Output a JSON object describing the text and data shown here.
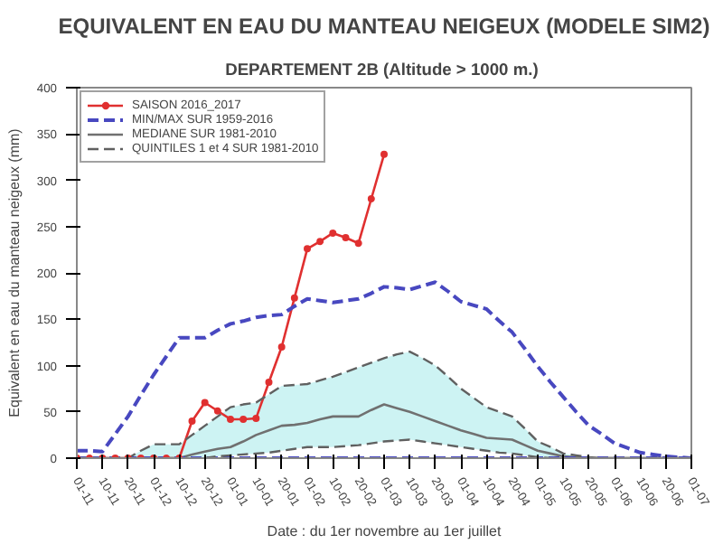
{
  "chart_data": {
    "type": "line",
    "title": "EQUIVALENT EN EAU DU MANTEAU NEIGEUX (MODELE SIM2)",
    "subtitle": "DEPARTEMENT 2B  (Altitude > 1000 m.)",
    "xlabel": "Date : du 1er novembre au 1er juillet",
    "ylabel": "Equivalent en eau du manteau neigeux (mm)",
    "ylim": [
      0,
      400
    ],
    "yticks": [
      0,
      50,
      100,
      150,
      200,
      250,
      300,
      350,
      400
    ],
    "categories": [
      "01-11",
      null,
      "10-11",
      null,
      "20-11",
      null,
      "01-12",
      null,
      "10-12",
      null,
      "20-12",
      null,
      "01-01",
      null,
      "10-01",
      null,
      "20-01",
      null,
      "01-02",
      null,
      "10-02",
      null,
      "20-02",
      null,
      "01-03",
      null,
      "10-03",
      null,
      "20-03",
      null,
      "01-04",
      null,
      "10-04",
      null,
      "20-04",
      null,
      "01-05",
      null,
      "10-05",
      null,
      "20-05",
      null,
      "01-06",
      null,
      "10-06",
      null,
      "20-06",
      null,
      "01-07"
    ],
    "grid": false,
    "legend": "top left",
    "series": [
      {
        "name": "SAISON 2016_2017",
        "color": "#e03030",
        "marker": "circle",
        "line_style": "solid",
        "values": [
          0,
          0,
          0,
          0,
          0,
          0,
          0,
          0,
          0,
          40,
          60,
          51,
          42,
          42,
          43,
          82,
          120,
          173,
          226,
          234,
          243,
          238,
          232,
          280,
          328,
          null,
          null,
          null,
          null,
          null,
          null,
          null,
          null,
          null,
          null,
          null,
          null,
          null,
          null,
          null,
          null,
          null,
          null,
          null,
          null,
          null,
          null,
          null,
          null
        ]
      },
      {
        "name": "MIN/MAX SUR 1959-2016",
        "color": "#4848c0",
        "marker": "none",
        "line_style": "dashed",
        "values": [
          8,
          8,
          7,
          26,
          45,
          68,
          90,
          110,
          130,
          130,
          130,
          138,
          145,
          148,
          152,
          154,
          155,
          164,
          172,
          170,
          168,
          170,
          172,
          178,
          185,
          184,
          182,
          186,
          190,
          180,
          169,
          165,
          161,
          148,
          136,
          118,
          99,
          82,
          66,
          50,
          35,
          26,
          16,
          11,
          6,
          4,
          2,
          1,
          0
        ]
      },
      {
        "color": "#4848c0",
        "marker": "none",
        "line_style": "dashed",
        "values": [
          0,
          0,
          0,
          0,
          0,
          0,
          0,
          0,
          0,
          0,
          0,
          0,
          0,
          0,
          0,
          0,
          0,
          0,
          0,
          0,
          0,
          0,
          0,
          0,
          0,
          0,
          0,
          0,
          0,
          0,
          0,
          0,
          0,
          0,
          0,
          0,
          0,
          0,
          0,
          0,
          0,
          0,
          0,
          0,
          0,
          0,
          0,
          0,
          0
        ]
      },
      {
        "name": "MEDIANE SUR 1981-2010",
        "color": "#707070",
        "marker": "none",
        "line_style": "solid",
        "values": [
          0,
          0,
          0,
          0,
          0,
          0,
          0,
          0,
          0,
          4,
          7,
          10,
          12,
          18,
          25,
          30,
          35,
          36,
          38,
          42,
          45,
          45,
          45,
          52,
          58,
          54,
          50,
          45,
          40,
          35,
          30,
          26,
          22,
          21,
          20,
          14,
          8,
          5,
          2,
          1,
          0,
          0,
          0,
          0,
          0,
          0,
          0,
          0,
          0
        ],
        "lower": [
          0,
          0,
          0,
          0,
          0,
          0,
          0,
          0,
          0,
          0,
          0,
          2,
          3,
          4,
          5,
          6,
          8,
          10,
          12,
          12,
          12,
          13,
          14,
          16,
          18,
          19,
          20,
          18,
          16,
          14,
          12,
          10,
          8,
          6,
          5,
          3,
          1,
          0,
          0,
          0,
          0,
          0,
          0,
          0,
          0,
          0,
          0,
          0,
          0
        ],
        "upper": [
          0,
          0,
          0,
          0,
          0,
          8,
          15,
          15,
          15,
          25,
          35,
          45,
          55,
          58,
          60,
          69,
          78,
          79,
          80,
          84,
          88,
          93,
          98,
          103,
          108,
          112,
          115,
          108,
          100,
          88,
          75,
          65,
          55,
          50,
          45,
          32,
          18,
          12,
          5,
          3,
          1,
          0,
          0,
          0,
          0,
          0,
          0,
          0,
          0
        ]
      },
      {
        "name": "QUINTILES 1 et 4 SUR 1981-2010",
        "color": "#606060",
        "marker": "none",
        "line_style": "dashed",
        "values": [
          0,
          0,
          0,
          0,
          0,
          8,
          15,
          15,
          15,
          25,
          35,
          45,
          55,
          58,
          60,
          69,
          78,
          79,
          80,
          84,
          88,
          93,
          98,
          103,
          108,
          112,
          115,
          108,
          100,
          88,
          75,
          65,
          55,
          50,
          45,
          32,
          18,
          12,
          5,
          3,
          1,
          0,
          0,
          0,
          0,
          0,
          0,
          0,
          0
        ]
      },
      {
        "color": "#606060",
        "marker": "none",
        "line_style": "dashed",
        "values": [
          null,
          null,
          null,
          null,
          null,
          null,
          null,
          null,
          null,
          null,
          0,
          2,
          3,
          4,
          5,
          6,
          8,
          10,
          12,
          12,
          12,
          13,
          14,
          16,
          18,
          19,
          20,
          18,
          16,
          14,
          12,
          10,
          8,
          6,
          5,
          3,
          1,
          0,
          null,
          null,
          null,
          null,
          null,
          null,
          null,
          null,
          null,
          null,
          null
        ]
      }
    ]
  }
}
